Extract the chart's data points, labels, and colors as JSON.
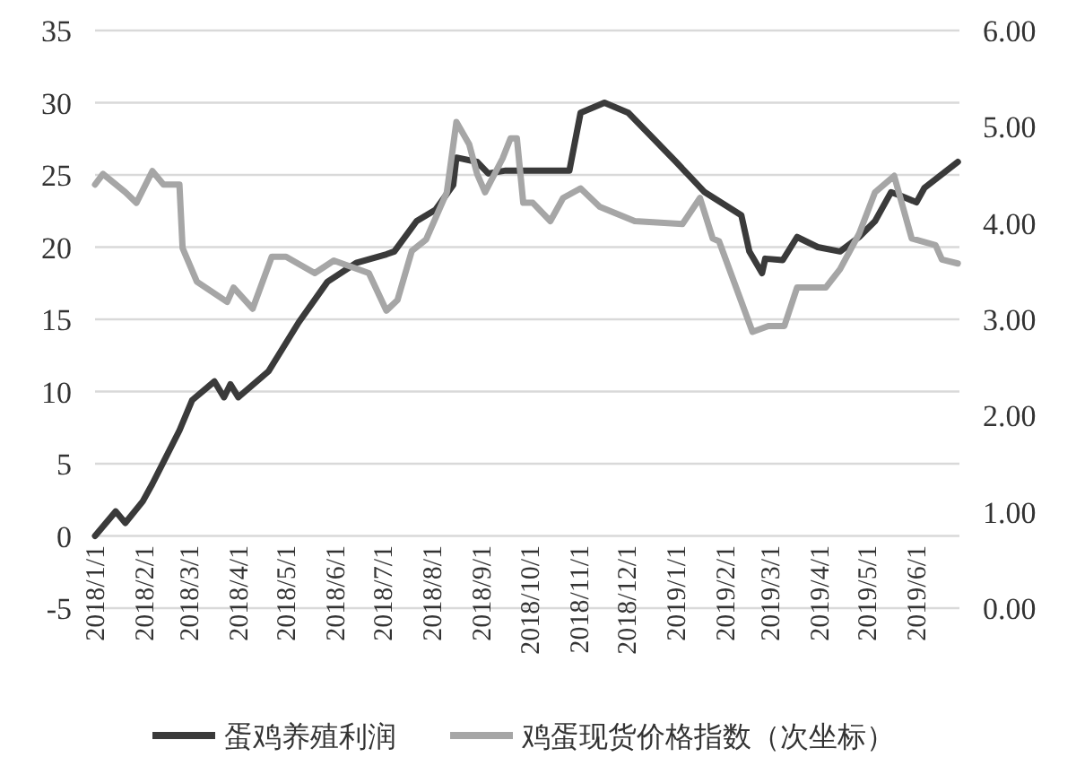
{
  "chart_data": {
    "type": "line",
    "xlim": [
      "2018-01-01",
      "2019-06-28"
    ],
    "xticks": [
      {
        "value": "2018-01-01",
        "label": "2018/1/1"
      },
      {
        "value": "2018-02-01",
        "label": "2018/2/1"
      },
      {
        "value": "2018-03-01",
        "label": "2018/3/1"
      },
      {
        "value": "2018-04-01",
        "label": "2018/4/1"
      },
      {
        "value": "2018-05-01",
        "label": "2018/5/1"
      },
      {
        "value": "2018-06-01",
        "label": "2018/6/1"
      },
      {
        "value": "2018-07-01",
        "label": "2018/7/1"
      },
      {
        "value": "2018-08-01",
        "label": "2018/8/1"
      },
      {
        "value": "2018-09-01",
        "label": "2018/9/1"
      },
      {
        "value": "2018-10-01",
        "label": "2018/10/1"
      },
      {
        "value": "2018-11-01",
        "label": "2018/11/1"
      },
      {
        "value": "2018-12-01",
        "label": "2018/12/1"
      },
      {
        "value": "2019-01-01",
        "label": "2019/1/1"
      },
      {
        "value": "2019-02-01",
        "label": "2019/2/1"
      },
      {
        "value": "2019-03-01",
        "label": "2019/3/1"
      },
      {
        "value": "2019-04-01",
        "label": "2019/4/1"
      },
      {
        "value": "2019-05-01",
        "label": "2019/5/1"
      },
      {
        "value": "2019-06-01",
        "label": "2019/6/1"
      }
    ],
    "ylim": [
      -5,
      35
    ],
    "yticks": [
      -5,
      0,
      5,
      10,
      15,
      20,
      25,
      30,
      35
    ],
    "y2lim": [
      0,
      6
    ],
    "y2ticks": [
      {
        "value": 0,
        "label": "0.00"
      },
      {
        "value": 1,
        "label": "1.00"
      },
      {
        "value": 2,
        "label": "2.00"
      },
      {
        "value": 3,
        "label": "3.00"
      },
      {
        "value": 4,
        "label": "4.00"
      },
      {
        "value": 5,
        "label": "5.00"
      },
      {
        "value": 6,
        "label": "6.00"
      }
    ],
    "grid": "y",
    "legend": "bottom",
    "series": [
      {
        "name": "蛋鸡养殖利润",
        "color": "#3a3a3a",
        "x": [
          "2018-01-01",
          "2018-01-14",
          "2018-01-20",
          "2018-01-31",
          "2018-02-06",
          "2018-02-23",
          "2018-03-03",
          "2018-03-17",
          "2018-03-23",
          "2018-03-27",
          "2018-04-01",
          "2018-04-20",
          "2018-05-09",
          "2018-05-27",
          "2018-06-14",
          "2018-07-03",
          "2018-07-08",
          "2018-07-22",
          "2018-08-03",
          "2018-08-14",
          "2018-08-16",
          "2018-08-29",
          "2018-09-05",
          "2018-09-16",
          "2018-10-06",
          "2018-10-26",
          "2018-11-02",
          "2018-11-17",
          "2018-12-02",
          "2019-01-01",
          "2019-01-19",
          "2019-02-11",
          "2019-02-16",
          "2019-02-24",
          "2019-02-26",
          "2019-03-09",
          "2019-03-18",
          "2019-03-31",
          "2019-04-14",
          "2019-04-26",
          "2019-05-06",
          "2019-05-16",
          "2019-05-21",
          "2019-06-01",
          "2019-06-06",
          "2019-06-27"
        ],
        "values": [
          0,
          1.7,
          0.9,
          2.4,
          3.6,
          7.3,
          9.4,
          10.7,
          9.6,
          10.5,
          9.6,
          11.4,
          14.8,
          17.6,
          18.9,
          19.5,
          19.7,
          21.8,
          22.6,
          24.3,
          26.2,
          25.9,
          25.1,
          25.3,
          25.3,
          25.3,
          29.3,
          30.0,
          29.3,
          25.9,
          23.8,
          22.2,
          19.7,
          18.2,
          19.2,
          19.1,
          20.7,
          20.0,
          19.7,
          20.7,
          21.8,
          23.8,
          23.6,
          23.1,
          24.1,
          25.9
        ]
      },
      {
        "name": "鸡蛋现货价格指数（次坐标）",
        "color": "#a6a6a6",
        "axis": "y2",
        "x": [
          "2018-01-01",
          "2018-01-06",
          "2018-01-20",
          "2018-01-27",
          "2018-02-06",
          "2018-02-13",
          "2018-02-23",
          "2018-02-25",
          "2018-03-06",
          "2018-03-25",
          "2018-03-29",
          "2018-04-10",
          "2018-04-22",
          "2018-05-01",
          "2018-05-19",
          "2018-05-31",
          "2018-06-22",
          "2018-07-03",
          "2018-07-10",
          "2018-07-19",
          "2018-07-28",
          "2018-08-10",
          "2018-08-16",
          "2018-08-24",
          "2018-08-29",
          "2018-09-03",
          "2018-09-14",
          "2018-09-19",
          "2018-09-23",
          "2018-09-27",
          "2018-10-03",
          "2018-10-14",
          "2018-10-22",
          "2018-11-02",
          "2018-11-14",
          "2018-12-06",
          "2019-01-05",
          "2019-01-16",
          "2019-01-24",
          "2019-01-28",
          "2019-02-18",
          "2019-02-28",
          "2019-03-10",
          "2019-03-18",
          "2019-04-05",
          "2019-04-14",
          "2019-04-26",
          "2019-05-06",
          "2019-05-18",
          "2019-05-29",
          "2019-06-13",
          "2019-06-17",
          "2019-06-27"
        ],
        "values": [
          4.4,
          4.51,
          4.32,
          4.21,
          4.54,
          4.4,
          4.4,
          3.74,
          3.39,
          3.18,
          3.33,
          3.11,
          3.65,
          3.65,
          3.48,
          3.61,
          3.48,
          3.09,
          3.2,
          3.71,
          3.83,
          4.32,
          5.05,
          4.82,
          4.51,
          4.32,
          4.67,
          4.88,
          4.88,
          4.21,
          4.21,
          4.02,
          4.26,
          4.36,
          4.17,
          4.02,
          3.99,
          4.26,
          3.84,
          3.81,
          2.87,
          2.93,
          2.93,
          3.33,
          3.33,
          3.52,
          3.89,
          4.32,
          4.49,
          3.84,
          3.77,
          3.62,
          3.58
        ]
      }
    ]
  }
}
